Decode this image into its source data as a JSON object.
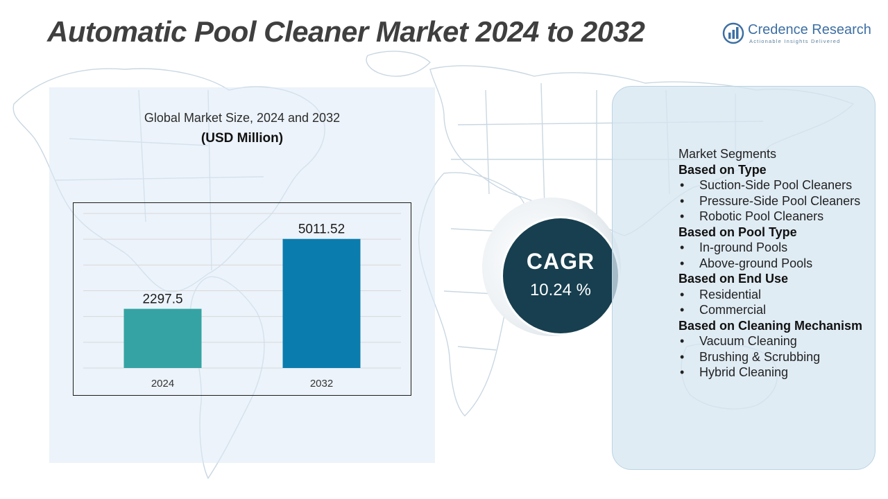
{
  "title": "Automatic Pool Cleaner Market 2024 to 2032",
  "brand": {
    "name": "Credence Research",
    "tagline": "Actionable Insights Delivered",
    "logo_icon": "bar-chart-circle-icon",
    "color": "#3d6fa3"
  },
  "background": {
    "map_icon": "world-map-outline",
    "color": "#dde9f2"
  },
  "chart_heading": "Global Market Size, 2024 and 2032",
  "chart_unit": "(USD Million)",
  "chart_data": {
    "type": "bar",
    "categories": [
      "2024",
      "2032"
    ],
    "values": [
      2297.5,
      5011.52
    ],
    "value_labels": [
      "2297.5",
      "5011.52"
    ],
    "colors": [
      "#35a3a3",
      "#0a7cad"
    ],
    "ylim": [
      0,
      6000
    ],
    "grid": true,
    "title": "",
    "xlabel": "",
    "ylabel": ""
  },
  "cagr": {
    "label": "CAGR",
    "value": "10.24 %"
  },
  "segments": {
    "title": "Market Segments",
    "groups": [
      {
        "heading": "Based on Type",
        "items": [
          "Suction-Side Pool Cleaners",
          "Pressure-Side Pool Cleaners",
          "Robotic Pool Cleaners"
        ]
      },
      {
        "heading": "Based on Pool Type",
        "items": [
          "In-ground Pools",
          "Above-ground Pools"
        ]
      },
      {
        "heading": "Based on End Use",
        "items": [
          "Residential",
          "Commercial"
        ]
      },
      {
        "heading": "Based on Cleaning Mechanism",
        "items": [
          "Vacuum Cleaning",
          "Brushing & Scrubbing",
          "Hybrid Cleaning"
        ]
      }
    ]
  }
}
